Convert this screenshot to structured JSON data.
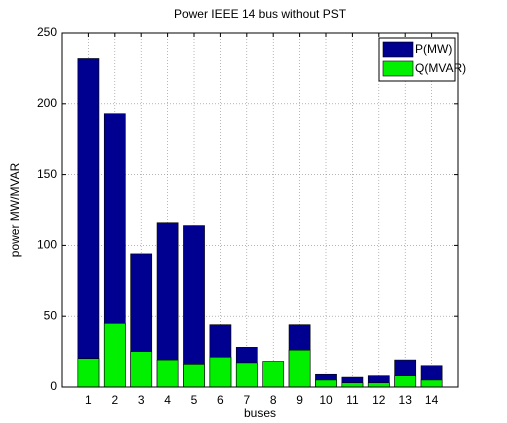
{
  "chart_data": {
    "type": "bar",
    "mode": "overlay",
    "title": "Power IEEE 14 bus without PST",
    "x_label": "buses",
    "y_label": "power MW/MVAR",
    "x": [
      1,
      2,
      3,
      4,
      5,
      6,
      7,
      8,
      9,
      10,
      11,
      12,
      13,
      14
    ],
    "xlim": [
      0,
      15
    ],
    "xticks": [
      1,
      2,
      3,
      4,
      5,
      6,
      7,
      8,
      9,
      10,
      11,
      12,
      13,
      14
    ],
    "ylim": [
      0,
      250
    ],
    "yticks": [
      0,
      50,
      100,
      150,
      200,
      250
    ],
    "grid": true,
    "legend": "upper right",
    "series": [
      {
        "name": "P(MW)",
        "color": "#000090",
        "values": [
          232,
          193,
          94,
          116,
          114,
          44,
          28,
          0,
          44,
          9,
          7,
          8,
          19,
          15
        ]
      },
      {
        "name": "Q(MVAR)",
        "color": "#00f000",
        "values": [
          20,
          45,
          25,
          19,
          16,
          21,
          17,
          18,
          26,
          5,
          3,
          3,
          8,
          5
        ]
      }
    ]
  }
}
